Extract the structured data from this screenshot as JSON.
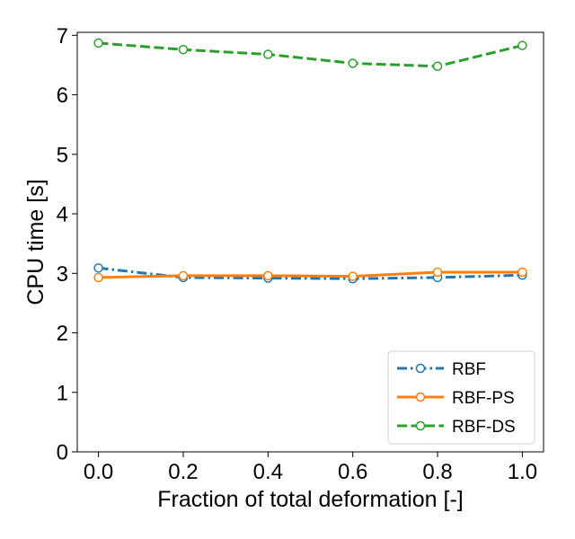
{
  "chart_data": {
    "type": "line",
    "xlabel": "Fraction of total deformation [-]",
    "ylabel": "CPU time [s]",
    "xlim": [
      -0.05,
      1.05
    ],
    "ylim": [
      0,
      7.05
    ],
    "xticks": [
      0.0,
      0.2,
      0.4,
      0.6,
      0.8,
      1.0
    ],
    "xtick_labels": [
      "0.0",
      "0.2",
      "0.4",
      "0.6",
      "0.8",
      "1.0"
    ],
    "yticks": [
      0,
      1,
      2,
      3,
      4,
      5,
      6,
      7
    ],
    "ytick_labels": [
      "0",
      "1",
      "2",
      "3",
      "4",
      "5",
      "6",
      "7"
    ],
    "grid": false,
    "legend_position": "bottom-right",
    "x": [
      0.0,
      0.2,
      0.4,
      0.6,
      0.8,
      1.0
    ],
    "series": [
      {
        "name": "RBF",
        "color": "#1f77b4",
        "dash": "dash-dot",
        "marker": "open-circle",
        "values": [
          3.09,
          2.93,
          2.92,
          2.91,
          2.93,
          2.97
        ]
      },
      {
        "name": "RBF-PS",
        "color": "#ff7f0e",
        "dash": "solid",
        "marker": "open-circle",
        "values": [
          2.93,
          2.96,
          2.96,
          2.95,
          3.02,
          3.02
        ]
      },
      {
        "name": "RBF-DS",
        "color": "#2ca02c",
        "dash": "dashed",
        "marker": "open-circle",
        "values": [
          6.87,
          6.76,
          6.68,
          6.53,
          6.48,
          6.83
        ]
      }
    ]
  }
}
